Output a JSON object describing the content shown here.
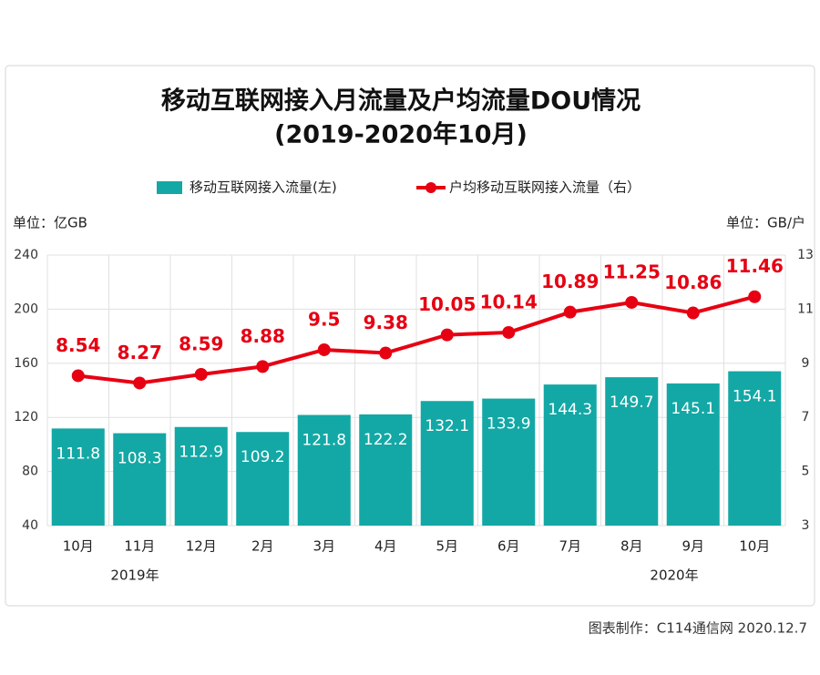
{
  "chart_data": {
    "type": "bar",
    "title": "移动互联网接入月流量及户均流量DOU情况",
    "subtitle": "(2019-2020年10月)",
    "y_unit": "单位：亿GB",
    "y2_unit": "单位：GB/户",
    "credit": "图表制作：C114通信网  2020.12.7",
    "categories": [
      "10月",
      "11月",
      "12月",
      "2月",
      "3月",
      "4月",
      "5月",
      "6月",
      "7月",
      "8月",
      "9月",
      "10月"
    ],
    "year_labels": [
      "2019年",
      "2020年"
    ],
    "series": [
      {
        "name": "移动互联网接入流量(左)",
        "type": "bar",
        "color": "#13a8a5",
        "values": [
          111.8,
          108.3,
          112.9,
          109.2,
          121.8,
          122.2,
          132.1,
          133.9,
          144.3,
          149.7,
          145.1,
          154.1
        ]
      },
      {
        "name": "户均移动互联网接入流量（右）",
        "type": "line",
        "axis": "y2",
        "color": "#e60012",
        "values": [
          8.54,
          8.27,
          8.59,
          8.88,
          9.5,
          9.38,
          10.05,
          10.14,
          10.89,
          11.25,
          10.86,
          11.46
        ]
      }
    ],
    "ylim": [
      40,
      240
    ],
    "yticks": [
      40,
      80,
      120,
      160,
      200,
      240
    ],
    "y2lim": [
      3,
      13
    ],
    "y2ticks": [
      3,
      5,
      7,
      9,
      11,
      13
    ],
    "grid": true
  }
}
